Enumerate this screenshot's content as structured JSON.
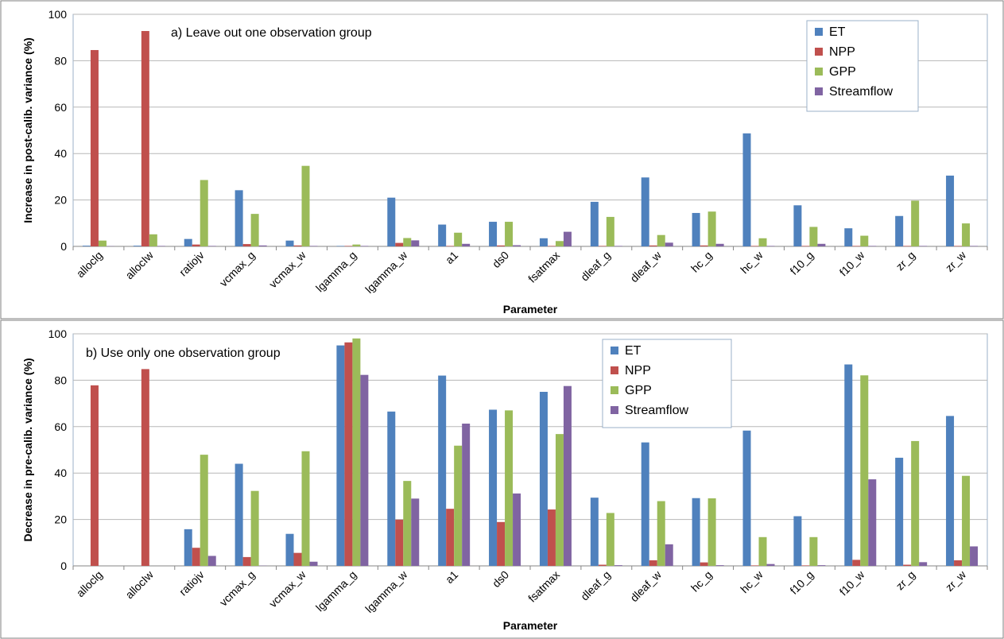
{
  "colors": {
    "ET": "#4f81bd",
    "NPP": "#c0504d",
    "GPP": "#9bbb59",
    "Streamflow": "#8064a2"
  },
  "chart_data": [
    {
      "type": "bar",
      "annotation": "a) Leave out one observation group",
      "xlabel": "Parameter",
      "ylabel": "Increase in post-calib. variance (%)",
      "ylim": [
        0,
        100
      ],
      "yticks": [
        0,
        20,
        40,
        60,
        80,
        100
      ],
      "grid": true,
      "legend_position": "top-right",
      "categories": [
        "alloclg",
        "allocIw",
        "ratiojv",
        "vcmax_g",
        "vcmax_w",
        "lgamma_g",
        "lgamma_w",
        "a1",
        "ds0",
        "fsatmax",
        "dleaf_g",
        "dleaf_w",
        "hc_g",
        "hc_w",
        "f10_g",
        "f10_w",
        "zr_g",
        "zr_w"
      ],
      "series": [
        {
          "name": "ET",
          "values": [
            0.3,
            0.3,
            3.2,
            24.2,
            2.5,
            0.2,
            21.0,
            9.4,
            10.6,
            3.5,
            19.2,
            29.7,
            14.4,
            48.7,
            17.7,
            7.8,
            13.1,
            30.5
          ]
        },
        {
          "name": "NPP",
          "values": [
            84.6,
            92.8,
            0.8,
            1.0,
            0.4,
            0.2,
            1.5,
            0.2,
            0.4,
            0.2,
            0.2,
            0.4,
            0.4,
            0.2,
            0.2,
            0.2,
            0.2,
            0.2
          ]
        },
        {
          "name": "GPP",
          "values": [
            2.5,
            5.2,
            28.6,
            14.0,
            34.7,
            0.8,
            3.6,
            5.9,
            10.6,
            2.3,
            12.7,
            4.9,
            15.0,
            3.5,
            8.4,
            4.6,
            19.7,
            9.9
          ]
        },
        {
          "name": "Streamflow",
          "values": [
            0.1,
            0.2,
            0.2,
            0.4,
            0.2,
            0.2,
            2.6,
            1.1,
            0.5,
            6.3,
            0.2,
            1.6,
            1.1,
            0.2,
            1.1,
            0.2,
            0.2,
            0.2
          ]
        }
      ]
    },
    {
      "type": "bar",
      "annotation": "b) Use only one observation group",
      "xlabel": "Parameter",
      "ylabel": "Decrease in pre-calib. variance (%)",
      "ylim": [
        0,
        100
      ],
      "yticks": [
        0,
        20,
        40,
        60,
        80,
        100
      ],
      "grid": true,
      "legend_position": "top-center",
      "categories": [
        "alloclg",
        "allocIw",
        "ratiojv",
        "vcmax_g",
        "vcmax_w",
        "lgamma_g",
        "lgamma_w",
        "a1",
        "ds0",
        "fsatmax",
        "dleaf_g",
        "dleaf_w",
        "hc_g",
        "hc_w",
        "f10_g",
        "f10_w",
        "zr_g",
        "zr_w"
      ],
      "series": [
        {
          "name": "ET",
          "values": [
            0,
            0,
            15.8,
            44.0,
            13.8,
            95.0,
            66.5,
            82.0,
            67.3,
            75.0,
            29.4,
            53.2,
            29.2,
            58.3,
            21.4,
            86.8,
            46.6,
            64.6
          ]
        },
        {
          "name": "NPP",
          "values": [
            77.8,
            84.8,
            7.8,
            3.8,
            5.6,
            96.3,
            19.9,
            24.6,
            18.9,
            24.3,
            0.5,
            2.4,
            1.5,
            0.2,
            0.2,
            2.6,
            0.5,
            2.4
          ]
        },
        {
          "name": "GPP",
          "values": [
            0,
            0,
            47.9,
            32.3,
            49.4,
            98.0,
            36.6,
            51.8,
            67.0,
            56.8,
            22.8,
            27.9,
            29.1,
            12.4,
            12.4,
            82.1,
            53.8,
            38.8
          ]
        },
        {
          "name": "Streamflow",
          "values": [
            0,
            0,
            4.3,
            0.1,
            1.8,
            82.3,
            29.0,
            61.3,
            31.2,
            77.5,
            0.3,
            9.3,
            0.3,
            0.8,
            0.3,
            37.3,
            1.6,
            8.4
          ]
        }
      ]
    }
  ]
}
